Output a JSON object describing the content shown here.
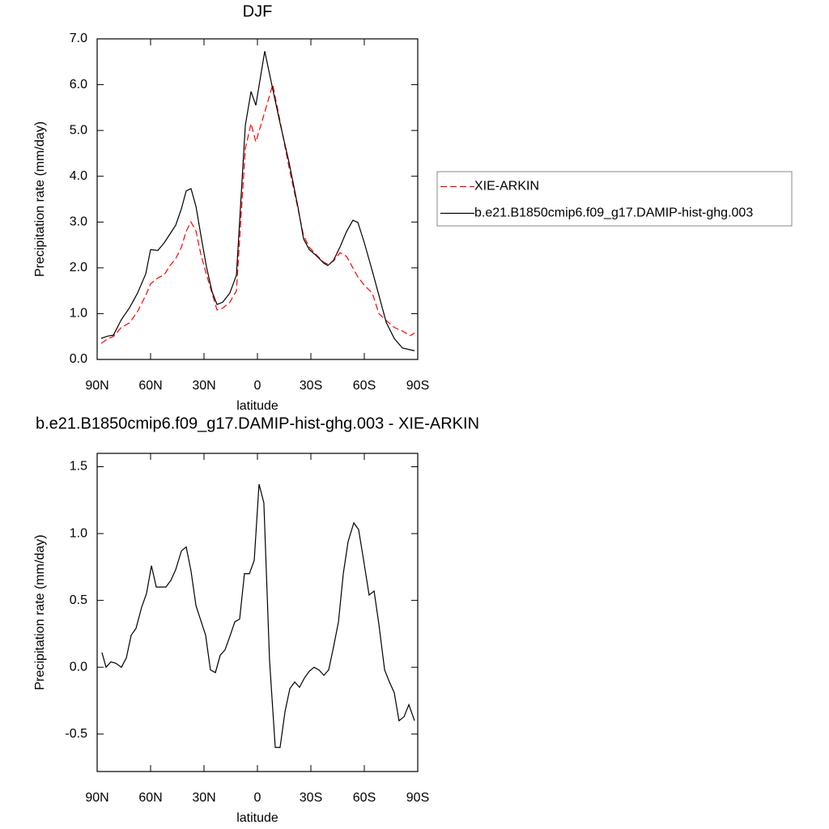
{
  "chart_data": [
    {
      "type": "line",
      "title": "DJF",
      "xlabel": "latitude",
      "ylabel": "Precipitation rate (mm/day)",
      "x": [
        87.7,
        84.1,
        80.9,
        76.4,
        71.8,
        67.3,
        62.7,
        60,
        55.9,
        52.3,
        49.1,
        45.9,
        42.7,
        40,
        37.3,
        34.5,
        31.8,
        28.6,
        25.5,
        22.7,
        19.5,
        15.5,
        11.8,
        6.8,
        3.6,
        0.9,
        -4.1,
        -8.6,
        -12.7,
        -17.7,
        -22.7,
        -25.9,
        -29.1,
        -32.7,
        -37.3,
        -39.5,
        -42.7,
        -46.4,
        -50,
        -53.6,
        -56.4,
        -60,
        -64.5,
        -68.2,
        -72.3,
        -76.8,
        -81.4,
        -85.9,
        -88.2
      ],
      "xlim": [
        90,
        -90
      ],
      "xticks": [
        {
          "value": 90,
          "label": "90N"
        },
        {
          "value": 60,
          "label": "60N"
        },
        {
          "value": 30,
          "label": "30N"
        },
        0,
        {
          "value": -30,
          "label": "30S"
        },
        {
          "value": -60,
          "label": "60S"
        },
        {
          "value": -90,
          "label": "90S"
        }
      ],
      "ylim": [
        0,
        7
      ],
      "yticks": [
        {
          "value": 0,
          "label": "0.0"
        },
        {
          "value": 1,
          "label": "1.0"
        },
        {
          "value": 2,
          "label": "2.0"
        },
        {
          "value": 3,
          "label": "3.0"
        },
        {
          "value": 4,
          "label": "4.0"
        },
        {
          "value": 5,
          "label": "5.0"
        },
        {
          "value": 6,
          "label": "6.0"
        },
        {
          "value": 7,
          "label": "7.0"
        }
      ],
      "legend": "right",
      "series": [
        {
          "name": "XIE-ARKIN",
          "color": "#ff0000",
          "style": "dashed",
          "values": [
            0.35,
            0.45,
            0.5,
            0.7,
            0.8,
            1.05,
            1.4,
            1.65,
            1.78,
            1.85,
            2.05,
            2.2,
            2.45,
            2.8,
            3.0,
            2.8,
            2.3,
            1.85,
            1.45,
            1.08,
            1.12,
            1.25,
            1.5,
            4.6,
            5.15,
            4.75,
            5.4,
            6.0,
            5.2,
            4.2,
            3.3,
            2.7,
            2.45,
            2.3,
            2.12,
            2.08,
            2.15,
            2.33,
            2.25,
            2.0,
            1.8,
            1.62,
            1.45,
            1.0,
            0.85,
            0.7,
            0.62,
            0.52,
            0.58
          ]
        },
        {
          "name": "b.e21.B1850cmip6.f09_g17.DAMIP-hist-ghg.003",
          "color": "#000000",
          "style": "solid",
          "values": [
            0.46,
            0.51,
            0.53,
            0.87,
            1.13,
            1.45,
            1.87,
            2.4,
            2.38,
            2.55,
            2.74,
            2.93,
            3.29,
            3.68,
            3.73,
            3.34,
            2.72,
            2.02,
            1.48,
            1.2,
            1.25,
            1.45,
            1.84,
            5.11,
            5.85,
            5.55,
            6.73,
            5.9,
            5.16,
            4.31,
            3.34,
            2.63,
            2.4,
            2.28,
            2.1,
            2.05,
            2.16,
            2.46,
            2.79,
            3.04,
            2.99,
            2.55,
            1.93,
            1.4,
            0.81,
            0.46,
            0.25,
            0.21,
            0.19
          ]
        }
      ]
    },
    {
      "type": "line",
      "title": "b.e21.B1850cmip6.f09_g17.DAMIP-hist-ghg.003 - XIE-ARKIN",
      "xlabel": "latitude",
      "ylabel": "Precipitation rate (mm/day)",
      "x": [
        87.3,
        85,
        82.3,
        79.5,
        76.4,
        73.6,
        70.9,
        68.2,
        65,
        62.3,
        59.5,
        56.8,
        54.1,
        51.4,
        48.6,
        45.9,
        42.7,
        40,
        37.3,
        34.5,
        31.8,
        29.1,
        26.4,
        23.6,
        20.9,
        18.2,
        15.5,
        12.7,
        10,
        7.3,
        4.5,
        1.8,
        -0.9,
        -3.6,
        -6.8,
        -10,
        -12.7,
        -15.5,
        -18.2,
        -20.9,
        -23.6,
        -26.4,
        -29.1,
        -31.8,
        -34.5,
        -37.3,
        -40,
        -42.7,
        -45.5,
        -48.2,
        -50.9,
        -54.1,
        -56.8,
        -59.5,
        -62.7,
        -65.5,
        -68.2,
        -71.4,
        -74.1,
        -76.8,
        -79.5,
        -82.3,
        -85,
        -88.2
      ],
      "xlim": [
        90,
        -90
      ],
      "xticks": [
        {
          "value": 90,
          "label": "90N"
        },
        {
          "value": 60,
          "label": "60N"
        },
        {
          "value": 30,
          "label": "30N"
        },
        0,
        {
          "value": -30,
          "label": "30S"
        },
        {
          "value": -60,
          "label": "60S"
        },
        {
          "value": -90,
          "label": "90S"
        }
      ],
      "ylim": [
        -0.78,
        1.6
      ],
      "yticks": [
        -0.5,
        {
          "value": 0,
          "label": "0.0"
        },
        0.5,
        {
          "value": 1,
          "label": "1.0"
        },
        1.5
      ],
      "series": [
        {
          "color": "#000000",
          "style": "solid",
          "values": [
            0.11,
            0.0,
            0.04,
            0.03,
            0.0,
            0.07,
            0.24,
            0.29,
            0.45,
            0.55,
            0.76,
            0.6,
            0.6,
            0.6,
            0.65,
            0.73,
            0.87,
            0.9,
            0.72,
            0.46,
            0.35,
            0.24,
            -0.02,
            -0.04,
            0.09,
            0.13,
            0.23,
            0.34,
            0.36,
            0.7,
            0.7,
            0.8,
            1.37,
            1.23,
            0.05,
            -0.6,
            -0.6,
            -0.33,
            -0.16,
            -0.11,
            -0.15,
            -0.08,
            -0.03,
            0.0,
            -0.02,
            -0.06,
            -0.02,
            0.15,
            0.34,
            0.7,
            0.94,
            1.08,
            1.03,
            0.81,
            0.54,
            0.57,
            0.32,
            -0.02,
            -0.11,
            -0.19,
            -0.4,
            -0.37,
            -0.28,
            -0.4
          ]
        }
      ]
    }
  ]
}
